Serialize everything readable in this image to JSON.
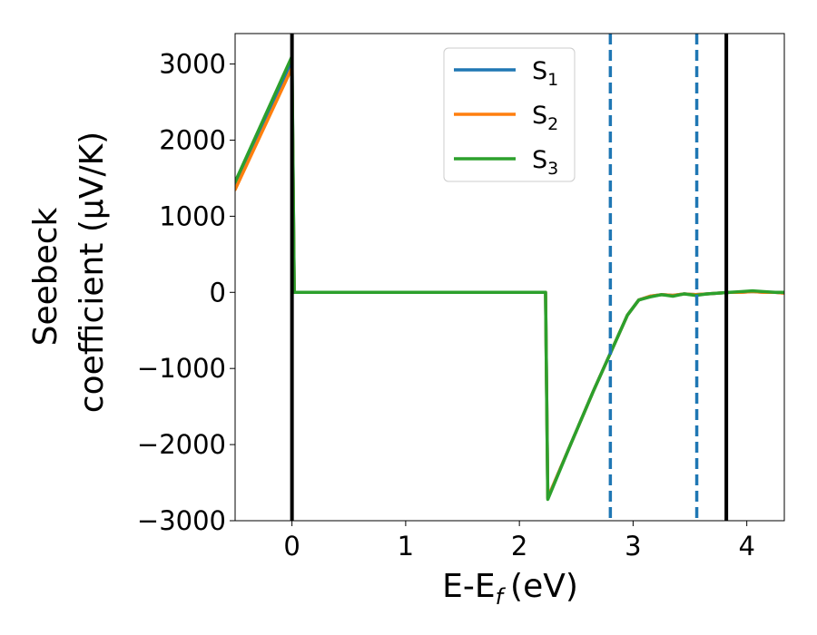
{
  "chart_data": {
    "type": "line",
    "xlabel": "E-E",
    "xlabel_sub": "f",
    "xlabel_unit": "(eV)",
    "ylabel_line1": "Seebeck",
    "ylabel_line2": "coefficient  (μV/K)",
    "xlim": [
      -0.5,
      4.33
    ],
    "ylim": [
      -3000,
      3400
    ],
    "x_ticks": [
      0,
      1,
      2,
      3,
      4
    ],
    "x_tick_labels": [
      "0",
      "1",
      "2",
      "3",
      "4"
    ],
    "y_ticks": [
      -3000,
      -2000,
      -1000,
      0,
      1000,
      2000,
      3000
    ],
    "y_tick_labels": [
      "−3000",
      "−2000",
      "−1000",
      "0",
      "1000",
      "2000",
      "3000"
    ],
    "legend_position": "top-center",
    "grid": false,
    "series": [
      {
        "name": "S",
        "sub": "1",
        "color": "#1f77b4",
        "x": [
          -0.5,
          0.0,
          0.02,
          2.22,
          2.23,
          2.25,
          2.45,
          2.65,
          2.8,
          2.95,
          3.05,
          3.15,
          3.25,
          3.35,
          3.45,
          3.55,
          3.65,
          3.75,
          3.85,
          3.95,
          4.05,
          4.15,
          4.25,
          4.33
        ],
        "values": [
          1400,
          3050,
          0,
          0,
          0,
          -2700,
          -2000,
          -1300,
          -800,
          -300,
          -100,
          -50,
          -30,
          -40,
          -20,
          -30,
          -20,
          -10,
          0,
          0,
          10,
          0,
          0,
          -10
        ]
      },
      {
        "name": "S",
        "sub": "2",
        "color": "#ff7f0e",
        "x": [
          -0.5,
          0.0,
          0.02,
          2.22,
          2.23,
          2.25,
          2.45,
          2.65,
          2.8,
          2.95,
          3.05,
          3.15,
          3.25,
          3.35,
          3.45,
          3.55,
          3.65,
          3.75,
          3.85,
          3.95,
          4.05,
          4.15,
          4.25,
          4.33
        ],
        "values": [
          1350,
          2950,
          0,
          0,
          0,
          -2700,
          -2000,
          -1300,
          -800,
          -300,
          -100,
          -50,
          -30,
          -40,
          -20,
          -30,
          -20,
          -10,
          0,
          0,
          10,
          0,
          0,
          -10
        ]
      },
      {
        "name": "S",
        "sub": "3",
        "color": "#2ca02c",
        "x": [
          -0.5,
          0.0,
          0.02,
          2.22,
          2.23,
          2.25,
          2.45,
          2.65,
          2.8,
          2.95,
          3.05,
          3.15,
          3.25,
          3.35,
          3.45,
          3.55,
          3.65,
          3.75,
          3.85,
          3.95,
          4.05,
          4.15,
          4.25,
          4.33
        ],
        "values": [
          1450,
          3100,
          0,
          0,
          0,
          -2720,
          -2000,
          -1300,
          -800,
          -300,
          -100,
          -60,
          -30,
          -50,
          -20,
          -40,
          -20,
          -10,
          0,
          10,
          20,
          10,
          0,
          0
        ]
      }
    ],
    "vertical_lines": [
      {
        "x": 0.0,
        "color": "#000000",
        "style": "solid"
      },
      {
        "x": 3.82,
        "color": "#000000",
        "style": "solid"
      },
      {
        "x": 2.8,
        "color": "#1f77b4",
        "style": "dashed"
      },
      {
        "x": 3.56,
        "color": "#1f77b4",
        "style": "dashed"
      }
    ]
  }
}
